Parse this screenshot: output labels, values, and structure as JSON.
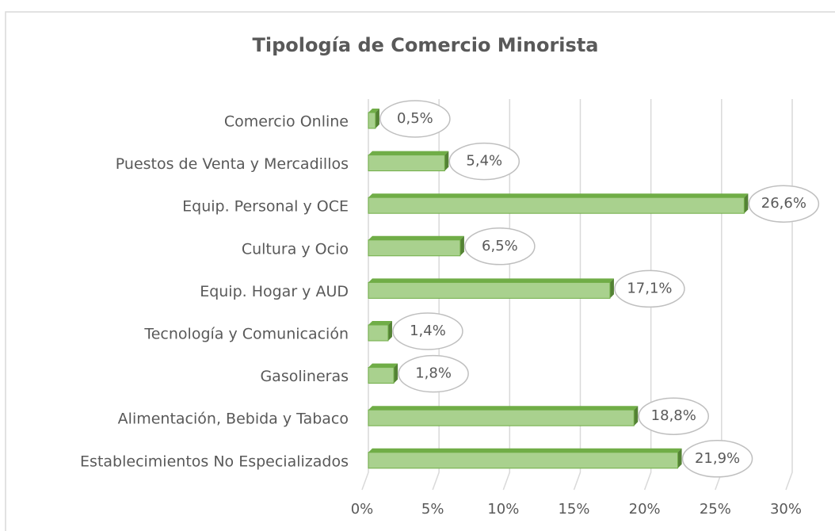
{
  "chart_data": {
    "type": "bar",
    "orientation": "horizontal",
    "title": "Tipología de Comercio Minorista",
    "categories": [
      "Comercio Online",
      "Puestos de Venta y Mercadillos",
      "Equip. Personal y OCE",
      "Cultura y Ocio",
      "Equip. Hogar y AUD",
      "Tecnología y Comunicación",
      "Gasolineras",
      "Alimentación, Bebida y Tabaco",
      "Establecimientos No Especializados"
    ],
    "values": [
      0.5,
      5.4,
      26.6,
      6.5,
      17.1,
      1.4,
      1.8,
      18.8,
      21.9
    ],
    "value_labels": [
      "0,5%",
      "5,4%",
      "26,6%",
      "6,5%",
      "17,1%",
      "1,4%",
      "1,8%",
      "18,8%",
      "21,9%"
    ],
    "color": "#a9d18e",
    "xlim": [
      0,
      30
    ],
    "xticks": [
      {
        "value": 0,
        "label": "0%"
      },
      {
        "value": 5,
        "label": "5%"
      },
      {
        "value": 10,
        "label": "10%"
      },
      {
        "value": 15,
        "label": "15%"
      },
      {
        "value": 20,
        "label": "20%"
      },
      {
        "value": 25,
        "label": "25%"
      },
      {
        "value": 30,
        "label": "30%"
      }
    ],
    "grid": true
  }
}
